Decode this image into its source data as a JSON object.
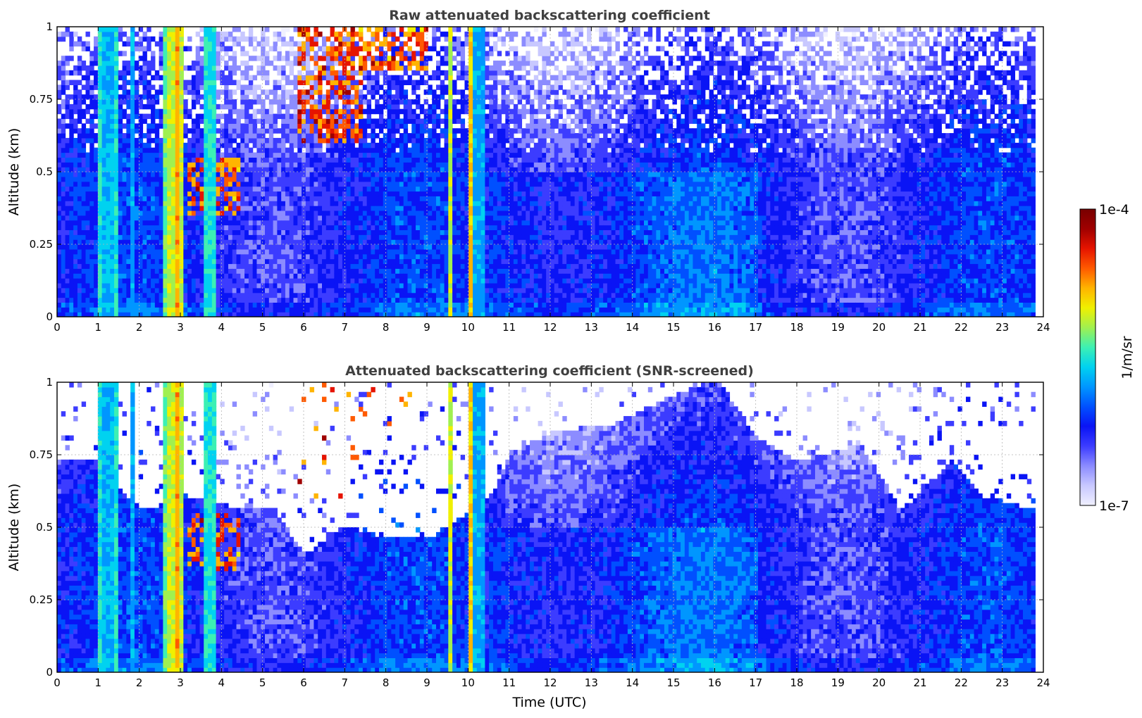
{
  "figure": {
    "colorbar": {
      "label": "1/m/sr",
      "max_label": "1e-4",
      "min_label": "1e-7",
      "range": [
        1e-07,
        0.0001
      ],
      "scale": "log",
      "colormap": [
        "#f0f0ff",
        "#c8c8ff",
        "#8c8cff",
        "#3c3cff",
        "#0a14f5",
        "#0050ff",
        "#0096ff",
        "#00d2f0",
        "#3cf0b4",
        "#a0f050",
        "#f0f000",
        "#ffb400",
        "#ff5a00",
        "#e61400",
        "#a00000",
        "#780000"
      ]
    }
  },
  "chart_data": [
    {
      "type": "heatmap",
      "title": "Raw attenuated backscattering coefficient",
      "xlabel": "",
      "ylabel": "Altitude (km)",
      "xlim": [
        0,
        24
      ],
      "ylim": [
        0,
        1
      ],
      "xticks": [
        "0",
        "1",
        "2",
        "3",
        "4",
        "5",
        "6",
        "7",
        "8",
        "9",
        "10",
        "11",
        "12",
        "13",
        "14",
        "15",
        "16",
        "17",
        "18",
        "19",
        "20",
        "21",
        "22",
        "23",
        "24"
      ],
      "yticks": [
        "0",
        "0.25",
        "0.5",
        "0.75",
        "1"
      ],
      "grid": true,
      "data_end_hour": 23.8,
      "background_level": 0.27,
      "high_signal_columns": [
        {
          "t0": 0.95,
          "t1": 1.05,
          "level": 0.5
        },
        {
          "t0": 1.05,
          "t1": 1.35,
          "level": 0.44
        },
        {
          "t0": 1.35,
          "t1": 1.5,
          "level": 0.5
        },
        {
          "t0": 1.75,
          "t1": 1.85,
          "level": 0.42
        },
        {
          "t0": 2.55,
          "t1": 2.7,
          "level": 0.55
        },
        {
          "t0": 2.7,
          "t1": 2.85,
          "level": 0.62
        },
        {
          "t0": 2.85,
          "t1": 3.0,
          "level": 0.72
        },
        {
          "t0": 3.0,
          "t1": 3.1,
          "level": 0.62
        },
        {
          "t0": 3.55,
          "t1": 3.85,
          "level": 0.5
        },
        {
          "t0": 9.5,
          "t1": 9.65,
          "level": 0.62
        },
        {
          "t0": 10.0,
          "t1": 10.05,
          "level": 0.82
        },
        {
          "t0": 10.05,
          "t1": 10.15,
          "level": 0.7
        },
        {
          "t0": 10.15,
          "t1": 10.4,
          "level": 0.42
        }
      ],
      "features": [
        {
          "name": "cloud-aloft",
          "t0": 5.8,
          "t1": 7.4,
          "y0": 0.6,
          "y1": 1.0,
          "level": 0.9
        },
        {
          "name": "cloud-aloft",
          "t0": 7.3,
          "t1": 9.0,
          "y0": 0.85,
          "y1": 1.0,
          "level": 0.88
        },
        {
          "name": "low-layer",
          "t0": 3.1,
          "t1": 4.4,
          "y0": 0.35,
          "y1": 0.55,
          "level": 0.88
        }
      ]
    },
    {
      "type": "heatmap",
      "title": "Attenuated backscattering coefficient (SNR-screened)",
      "xlabel": "Time (UTC)",
      "ylabel": "Altitude (km)",
      "xlim": [
        0,
        24
      ],
      "ylim": [
        0,
        1
      ],
      "xticks": [
        "0",
        "1",
        "2",
        "3",
        "4",
        "5",
        "6",
        "7",
        "8",
        "9",
        "10",
        "11",
        "12",
        "13",
        "14",
        "15",
        "16",
        "17",
        "18",
        "19",
        "20",
        "21",
        "22",
        "23",
        "24"
      ],
      "yticks": [
        "0",
        "0.25",
        "0.5",
        "0.75",
        "1"
      ],
      "grid": true,
      "data_end_hour": 23.8,
      "screened_top_km": [
        {
          "t": 0.0,
          "y": 0.72
        },
        {
          "t": 0.9,
          "y": 0.72
        },
        {
          "t": 2.0,
          "y": 0.55
        },
        {
          "t": 3.2,
          "y": 0.6
        },
        {
          "t": 4.5,
          "y": 0.55
        },
        {
          "t": 5.2,
          "y": 0.55
        },
        {
          "t": 6.0,
          "y": 0.4
        },
        {
          "t": 7.0,
          "y": 0.5
        },
        {
          "t": 8.0,
          "y": 0.45
        },
        {
          "t": 9.0,
          "y": 0.45
        },
        {
          "t": 10.5,
          "y": 0.6
        },
        {
          "t": 11.0,
          "y": 0.75
        },
        {
          "t": 12.0,
          "y": 0.82
        },
        {
          "t": 13.5,
          "y": 0.85
        },
        {
          "t": 15.0,
          "y": 0.95
        },
        {
          "t": 16.0,
          "y": 1.0
        },
        {
          "t": 17.0,
          "y": 0.8
        },
        {
          "t": 18.0,
          "y": 0.72
        },
        {
          "t": 19.5,
          "y": 0.78
        },
        {
          "t": 20.5,
          "y": 0.55
        },
        {
          "t": 21.7,
          "y": 0.72
        },
        {
          "t": 22.5,
          "y": 0.6
        },
        {
          "t": 23.8,
          "y": 0.55
        }
      ]
    }
  ]
}
